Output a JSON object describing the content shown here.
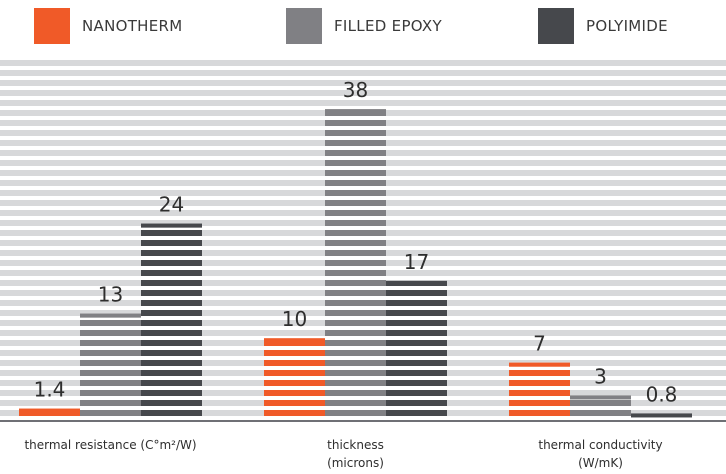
{
  "legend": [
    {
      "label": "NANOTHERM",
      "color": "#f05a28"
    },
    {
      "label": "FILLED EPOXY",
      "color": "#808084"
    },
    {
      "label": "POLYIMIDE",
      "color": "#46484c"
    }
  ],
  "chart_data": {
    "type": "bar",
    "title": "",
    "xlabel": "",
    "ylabel": "",
    "ylim": [
      0,
      44
    ],
    "grid": true,
    "legend_position": "top",
    "categories": [
      [
        "thermal resistance (C°m²/W)"
      ],
      [
        "thickness",
        "(microns)"
      ],
      [
        "thermal conductivity",
        "(W/mK)"
      ]
    ],
    "series": [
      {
        "name": "NANOTHERM",
        "color": "#f05a28",
        "values": [
          1.4,
          10,
          7
        ],
        "labels": [
          "1.4",
          "10",
          "7"
        ]
      },
      {
        "name": "FILLED EPOXY",
        "color": "#808084",
        "values": [
          13,
          38,
          3
        ],
        "labels": [
          "13",
          "38",
          "3"
        ]
      },
      {
        "name": "POLYIMIDE",
        "color": "#46484c",
        "values": [
          24,
          17,
          0.8
        ],
        "labels": [
          "24",
          "17",
          "0.8"
        ]
      }
    ]
  }
}
